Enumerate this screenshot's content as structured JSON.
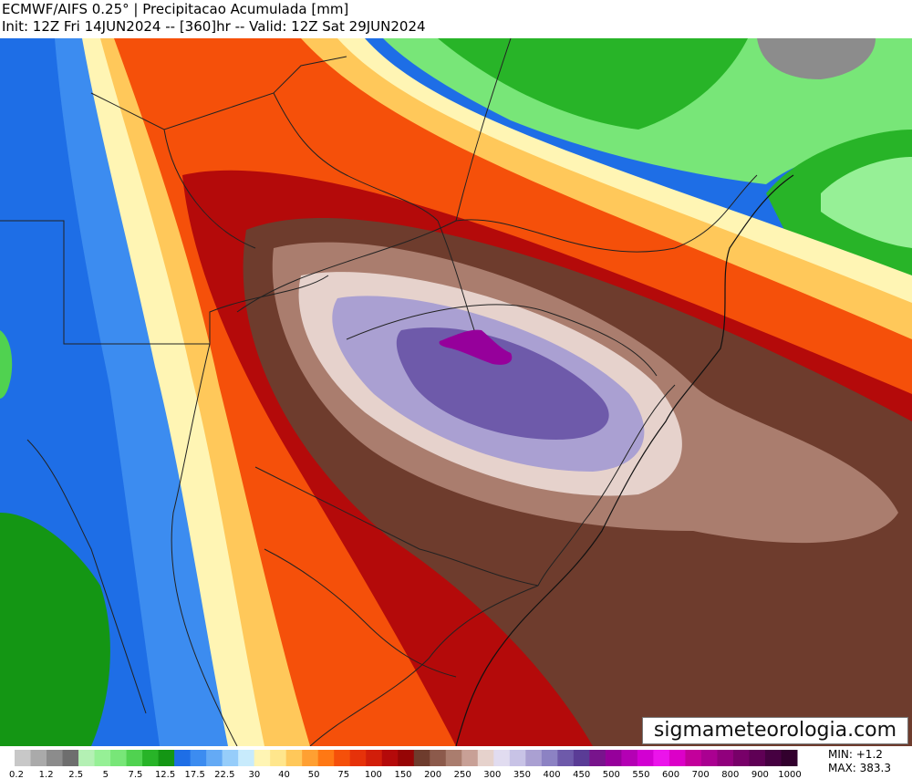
{
  "header": {
    "title": "ECMWF/AIFS 0.25° | Precipitacao Acumulada [mm]",
    "subtitle": "Init: 12Z Fri 14JUN2024 -- [360]hr -- Valid: 12Z Sat 29JUN2024"
  },
  "watermark": "sigmameteorologia.com",
  "stats": {
    "min_label": "MIN:",
    "min_value": "+1.2",
    "max_label": "MAX:",
    "max_value": "383.3"
  },
  "colorbar": {
    "labels": [
      "0.2",
      "1.2",
      "2.5",
      "5",
      "7.5",
      "12.5",
      "17.5",
      "22.5",
      "30",
      "40",
      "50",
      "75",
      "100",
      "150",
      "200",
      "250",
      "300",
      "350",
      "400",
      "450",
      "500",
      "550",
      "600",
      "700",
      "800",
      "900",
      "1000"
    ],
    "colors": [
      "#c8c8c8",
      "#aaaaaa",
      "#8c8c8c",
      "#6e6e6e",
      "#b4f0b4",
      "#96f096",
      "#78e678",
      "#50d250",
      "#28b428",
      "#149614",
      "#1e6ee6",
      "#3c8cf0",
      "#64aaf5",
      "#96cdfa",
      "#c8ebfc",
      "#fff5b4",
      "#ffe68c",
      "#ffc85a",
      "#ffa032",
      "#ff7814",
      "#f5500a",
      "#e6320a",
      "#d21e0a",
      "#b40a0a",
      "#960505",
      "#6e3c2d",
      "#8c5a4b",
      "#aa7d6e",
      "#c8a096",
      "#e6d2cc",
      "#e1dcf0",
      "#c8c3e6",
      "#aaa0d2",
      "#8c82c3",
      "#6e5aaa",
      "#5a3c96",
      "#78148c",
      "#96009b",
      "#b400b4",
      "#d200d2",
      "#eb14eb",
      "#dc00c8",
      "#c3009b",
      "#aa0091",
      "#91007d",
      "#780069",
      "#5f0055",
      "#460041",
      "#32002d"
    ]
  }
}
